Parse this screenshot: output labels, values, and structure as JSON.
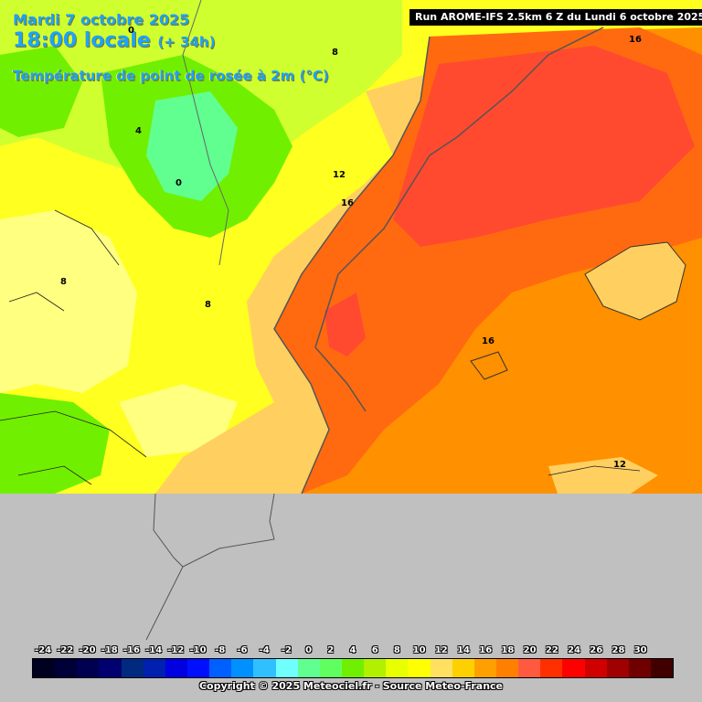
{
  "header": {
    "date_line": "Mardi 7 octobre 2025",
    "time_line": "18:00 locale",
    "lead_time": "(+ 34h)",
    "variable": "Température de point de rosée à 2m (°C)",
    "run_info": "Run AROME-IFS 2.5km 6 Z du Lundi 6 octobre 2025"
  },
  "contour_labels": [
    "0",
    "4",
    "0",
    "8",
    "8",
    "8",
    "12",
    "16",
    "16",
    "16",
    "12"
  ],
  "legend": {
    "ticks": [
      "-24",
      "-22",
      "-20",
      "-18",
      "-16",
      "-14",
      "-12",
      "-10",
      "-8",
      "-6",
      "-4",
      "-2",
      "0",
      "2",
      "4",
      "6",
      "8",
      "10",
      "12",
      "14",
      "16",
      "18",
      "20",
      "22",
      "24",
      "26",
      "28",
      "30"
    ],
    "colors": [
      "#000020",
      "#000038",
      "#000050",
      "#000070",
      "#002a80",
      "#0020b0",
      "#0000e0",
      "#0010ff",
      "#0060ff",
      "#0090ff",
      "#30c0ff",
      "#70ffff",
      "#60ff90",
      "#60ff60",
      "#70f000",
      "#b0f000",
      "#e8ff00",
      "#ffff00",
      "#ffe060",
      "#ffd000",
      "#ffa000",
      "#ff8000",
      "#ff5a40",
      "#ff3000",
      "#ff0000",
      "#d00000",
      "#a00000",
      "#700000",
      "#400000"
    ],
    "copyright": "Copyright © 2025 Meteociel.fr - Source Meteo-France"
  },
  "map": {
    "colors": {
      "no_data": "#c0c0c0",
      "yellow": "#ffff20",
      "light_yellow": "#ffff80",
      "yellow_green": "#d0ff30",
      "green": "#70f000",
      "aqua_green": "#60ff90",
      "pale_orange": "#ffd060",
      "orange": "#ff9000",
      "dark_orange": "#ff6a10",
      "red": "#ff4a30"
    }
  }
}
